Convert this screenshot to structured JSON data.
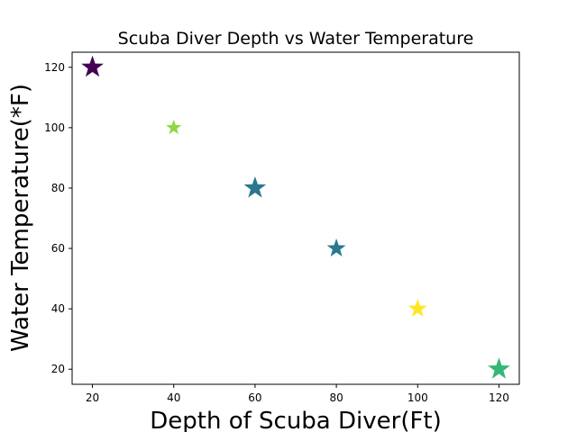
{
  "chart_data": {
    "type": "scatter",
    "title": "Scuba Diver Depth vs Water Temperature",
    "xlabel": "Depth of Scuba Diver(Ft)",
    "ylabel": "Water Temperature(*F)",
    "xlim": [
      15,
      125
    ],
    "ylim": [
      15,
      125
    ],
    "xticks": [
      20,
      40,
      60,
      80,
      100,
      120
    ],
    "yticks": [
      20,
      40,
      60,
      80,
      100,
      120
    ],
    "grid": false,
    "marker": "star",
    "points": [
      {
        "x": 20,
        "y": 120,
        "color": "#440154",
        "size": "large"
      },
      {
        "x": 40,
        "y": 100,
        "color": "#8fd744",
        "size": "small"
      },
      {
        "x": 60,
        "y": 80,
        "color": "#2a788e",
        "size": "large"
      },
      {
        "x": 80,
        "y": 60,
        "color": "#2a788e",
        "size": "medium"
      },
      {
        "x": 100,
        "y": 40,
        "color": "#fde725",
        "size": "medium"
      },
      {
        "x": 120,
        "y": 20,
        "color": "#35b779",
        "size": "large"
      }
    ]
  }
}
